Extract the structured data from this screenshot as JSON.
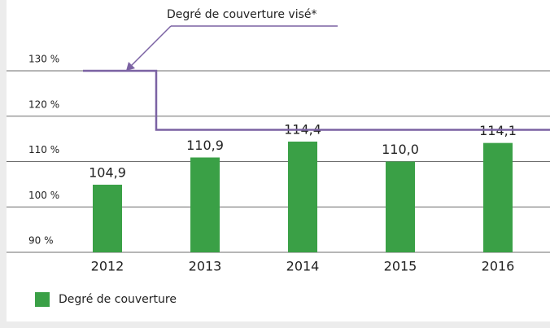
{
  "chart_data": {
    "type": "bar",
    "annotation": "Degré de couverture visé*",
    "categories": [
      "2012",
      "2013",
      "2014",
      "2015",
      "2016"
    ],
    "series": [
      {
        "name": "Degré de couverture",
        "color": "#3aa046",
        "values": [
          104.9,
          110.9,
          114.4,
          110.0,
          114.1
        ],
        "value_labels": [
          "104,9",
          "110,9",
          "114,4",
          "110,0",
          "114,1"
        ]
      },
      {
        "name": "Degré de couverture visé*",
        "type": "step",
        "color": "#7b62a3",
        "values": [
          130,
          117,
          117,
          117,
          117
        ]
      }
    ],
    "ylim": [
      90,
      130
    ],
    "yticks": [
      {
        "value": 90,
        "label": "90 %"
      },
      {
        "value": 100,
        "label": "100 %"
      },
      {
        "value": 110,
        "label": "110 %"
      },
      {
        "value": 120,
        "label": "120 %"
      },
      {
        "value": 130,
        "label": "130 %"
      }
    ],
    "grid": true,
    "legend": "bottom-left"
  }
}
